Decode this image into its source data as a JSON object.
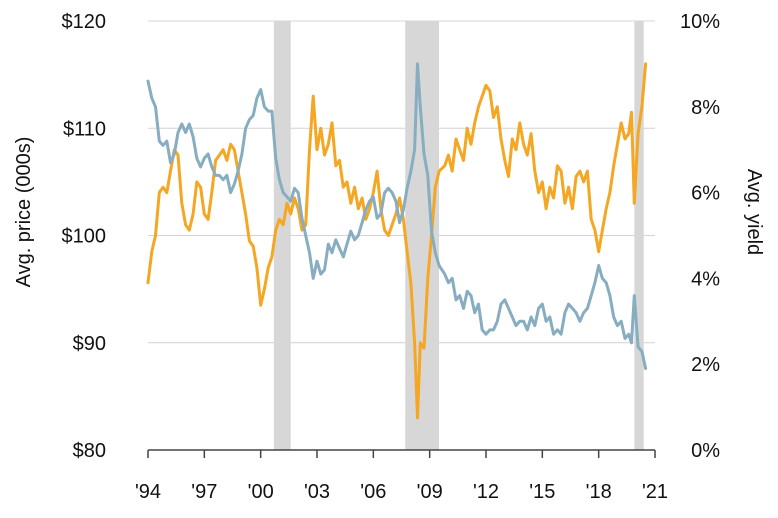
{
  "chart_data": {
    "type": "line",
    "title": "",
    "ylabel_left": "Avg. price (000s)",
    "ylabel_right": "Avg. yield",
    "xlim": [
      1994,
      2021
    ],
    "ylim_left": [
      80,
      120
    ],
    "ylim_right": [
      0,
      10
    ],
    "grid": "horizontal",
    "x_ticks": [
      {
        "value": 1994,
        "label": "'94"
      },
      {
        "value": 1997,
        "label": "'97"
      },
      {
        "value": 2000,
        "label": "'00"
      },
      {
        "value": 2003,
        "label": "'03"
      },
      {
        "value": 2006,
        "label": "'06"
      },
      {
        "value": 2009,
        "label": "'09"
      },
      {
        "value": 2012,
        "label": "'12"
      },
      {
        "value": 2015,
        "label": "'15"
      },
      {
        "value": 2018,
        "label": "'18"
      },
      {
        "value": 2021,
        "label": "'21"
      }
    ],
    "y_left_ticks": [
      {
        "value": 120,
        "label": "$120"
      },
      {
        "value": 110,
        "label": "$110"
      },
      {
        "value": 100,
        "label": "$100"
      },
      {
        "value": 90,
        "label": "$90"
      },
      {
        "value": 80,
        "label": "$80"
      }
    ],
    "y_right_ticks": [
      {
        "value": 10,
        "label": "10%"
      },
      {
        "value": 8,
        "label": "8%"
      },
      {
        "value": 6,
        "label": "6%"
      },
      {
        "value": 4,
        "label": "4%"
      },
      {
        "value": 2,
        "label": "2%"
      },
      {
        "value": 0,
        "label": "0%"
      }
    ],
    "recessions": [
      {
        "start": 2000.7,
        "end": 2001.6
      },
      {
        "start": 2007.7,
        "end": 2009.5
      },
      {
        "start": 2019.9,
        "end": 2020.4
      }
    ],
    "series": [
      {
        "name": "Avg. price",
        "axis": "left",
        "color": "#f5a623",
        "points": [
          [
            1994.0,
            95.6
          ],
          [
            1994.2,
            98.5
          ],
          [
            1994.4,
            100.0
          ],
          [
            1994.6,
            104.0
          ],
          [
            1994.8,
            104.5
          ],
          [
            1995.0,
            104.0
          ],
          [
            1995.2,
            106.0
          ],
          [
            1995.4,
            108.0
          ],
          [
            1995.6,
            107.5
          ],
          [
            1995.8,
            103.0
          ],
          [
            1996.0,
            101.0
          ],
          [
            1996.2,
            100.5
          ],
          [
            1996.4,
            102.0
          ],
          [
            1996.6,
            105.0
          ],
          [
            1996.8,
            104.5
          ],
          [
            1997.0,
            102.0
          ],
          [
            1997.2,
            101.5
          ],
          [
            1997.4,
            104.0
          ],
          [
            1997.6,
            107.0
          ],
          [
            1997.8,
            107.5
          ],
          [
            1998.0,
            108.0
          ],
          [
            1998.2,
            107.0
          ],
          [
            1998.4,
            108.5
          ],
          [
            1998.6,
            108.0
          ],
          [
            1998.8,
            106.0
          ],
          [
            1999.0,
            104.0
          ],
          [
            1999.2,
            102.0
          ],
          [
            1999.4,
            99.5
          ],
          [
            1999.6,
            99.0
          ],
          [
            1999.8,
            97.0
          ],
          [
            2000.0,
            93.5
          ],
          [
            2000.2,
            95.0
          ],
          [
            2000.4,
            97.0
          ],
          [
            2000.6,
            98.0
          ],
          [
            2000.8,
            100.5
          ],
          [
            2001.0,
            101.5
          ],
          [
            2001.2,
            101.0
          ],
          [
            2001.4,
            103.0
          ],
          [
            2001.6,
            102.0
          ],
          [
            2001.8,
            103.5
          ],
          [
            2002.0,
            102.5
          ],
          [
            2002.2,
            100.5
          ],
          [
            2002.4,
            101.0
          ],
          [
            2002.6,
            108.0
          ],
          [
            2002.8,
            113.0
          ],
          [
            2003.0,
            108.0
          ],
          [
            2003.2,
            110.0
          ],
          [
            2003.4,
            107.5
          ],
          [
            2003.6,
            108.5
          ],
          [
            2003.8,
            110.5
          ],
          [
            2004.0,
            106.5
          ],
          [
            2004.2,
            107.0
          ],
          [
            2004.4,
            104.5
          ],
          [
            2004.6,
            105.0
          ],
          [
            2004.8,
            103.0
          ],
          [
            2005.0,
            104.5
          ],
          [
            2005.2,
            102.5
          ],
          [
            2005.4,
            103.5
          ],
          [
            2005.6,
            101.5
          ],
          [
            2005.8,
            102.5
          ],
          [
            2006.0,
            104.0
          ],
          [
            2006.2,
            106.0
          ],
          [
            2006.4,
            102.5
          ],
          [
            2006.6,
            100.5
          ],
          [
            2006.8,
            100.0
          ],
          [
            2007.0,
            101.0
          ],
          [
            2007.2,
            102.0
          ],
          [
            2007.4,
            103.5
          ],
          [
            2007.6,
            101.5
          ],
          [
            2007.8,
            98.5
          ],
          [
            2008.0,
            95.5
          ],
          [
            2008.2,
            90.0
          ],
          [
            2008.35,
            83.0
          ],
          [
            2008.5,
            90.0
          ],
          [
            2008.7,
            89.5
          ],
          [
            2008.9,
            96.0
          ],
          [
            2009.1,
            100.0
          ],
          [
            2009.3,
            104.5
          ],
          [
            2009.5,
            106.0
          ],
          [
            2009.8,
            106.5
          ],
          [
            2010.0,
            107.5
          ],
          [
            2010.2,
            106.0
          ],
          [
            2010.4,
            109.0
          ],
          [
            2010.6,
            108.0
          ],
          [
            2010.8,
            107.0
          ],
          [
            2011.0,
            110.0
          ],
          [
            2011.2,
            108.5
          ],
          [
            2011.4,
            110.5
          ],
          [
            2011.6,
            112.0
          ],
          [
            2011.8,
            113.0
          ],
          [
            2012.0,
            114.0
          ],
          [
            2012.2,
            113.5
          ],
          [
            2012.4,
            111.0
          ],
          [
            2012.6,
            112.0
          ],
          [
            2012.8,
            109.0
          ],
          [
            2013.0,
            107.0
          ],
          [
            2013.2,
            105.5
          ],
          [
            2013.4,
            109.0
          ],
          [
            2013.6,
            108.0
          ],
          [
            2013.8,
            110.5
          ],
          [
            2014.0,
            108.5
          ],
          [
            2014.2,
            107.5
          ],
          [
            2014.4,
            109.5
          ],
          [
            2014.6,
            106.0
          ],
          [
            2014.8,
            104.0
          ],
          [
            2015.0,
            105.0
          ],
          [
            2015.2,
            102.5
          ],
          [
            2015.4,
            104.5
          ],
          [
            2015.6,
            103.5
          ],
          [
            2015.8,
            106.5
          ],
          [
            2016.0,
            106.0
          ],
          [
            2016.2,
            103.0
          ],
          [
            2016.4,
            104.5
          ],
          [
            2016.6,
            102.5
          ],
          [
            2016.8,
            105.5
          ],
          [
            2017.0,
            106.0
          ],
          [
            2017.2,
            105.0
          ],
          [
            2017.4,
            106.0
          ],
          [
            2017.6,
            101.5
          ],
          [
            2017.8,
            100.5
          ],
          [
            2018.0,
            98.5
          ],
          [
            2018.2,
            100.5
          ],
          [
            2018.4,
            102.5
          ],
          [
            2018.6,
            104.0
          ],
          [
            2018.8,
            106.5
          ],
          [
            2019.0,
            108.5
          ],
          [
            2019.2,
            110.5
          ],
          [
            2019.4,
            109.0
          ],
          [
            2019.6,
            109.5
          ],
          [
            2019.75,
            111.5
          ],
          [
            2019.9,
            103.0
          ],
          [
            2020.1,
            109.5
          ],
          [
            2020.3,
            112.0
          ],
          [
            2020.5,
            116.0
          ]
        ]
      },
      {
        "name": "Avg. yield",
        "axis": "right",
        "color": "#87adc1",
        "points": [
          [
            1994.0,
            8.6
          ],
          [
            1994.2,
            8.2
          ],
          [
            1994.4,
            8.0
          ],
          [
            1994.6,
            7.2
          ],
          [
            1994.8,
            7.1
          ],
          [
            1995.0,
            7.2
          ],
          [
            1995.2,
            6.7
          ],
          [
            1995.4,
            6.9
          ],
          [
            1995.6,
            7.4
          ],
          [
            1995.8,
            7.6
          ],
          [
            1996.0,
            7.4
          ],
          [
            1996.2,
            7.6
          ],
          [
            1996.4,
            7.3
          ],
          [
            1996.6,
            6.8
          ],
          [
            1996.8,
            6.6
          ],
          [
            1997.0,
            6.8
          ],
          [
            1997.2,
            6.9
          ],
          [
            1997.4,
            6.6
          ],
          [
            1997.6,
            6.4
          ],
          [
            1997.8,
            6.4
          ],
          [
            1998.0,
            6.3
          ],
          [
            1998.2,
            6.4
          ],
          [
            1998.4,
            6.0
          ],
          [
            1998.6,
            6.2
          ],
          [
            1998.8,
            6.5
          ],
          [
            1999.0,
            6.9
          ],
          [
            1999.2,
            7.5
          ],
          [
            1999.4,
            7.7
          ],
          [
            1999.6,
            7.8
          ],
          [
            1999.8,
            8.2
          ],
          [
            2000.0,
            8.4
          ],
          [
            2000.2,
            8.0
          ],
          [
            2000.4,
            7.9
          ],
          [
            2000.6,
            7.9
          ],
          [
            2000.8,
            6.8
          ],
          [
            2001.0,
            6.3
          ],
          [
            2001.2,
            6.0
          ],
          [
            2001.4,
            5.9
          ],
          [
            2001.6,
            5.8
          ],
          [
            2001.8,
            6.1
          ],
          [
            2002.0,
            6.0
          ],
          [
            2002.2,
            5.4
          ],
          [
            2002.4,
            5.0
          ],
          [
            2002.6,
            4.6
          ],
          [
            2002.8,
            4.0
          ],
          [
            2003.0,
            4.4
          ],
          [
            2003.2,
            4.1
          ],
          [
            2003.4,
            4.2
          ],
          [
            2003.6,
            4.8
          ],
          [
            2003.8,
            4.6
          ],
          [
            2004.0,
            4.9
          ],
          [
            2004.2,
            4.7
          ],
          [
            2004.4,
            4.5
          ],
          [
            2004.6,
            4.8
          ],
          [
            2004.8,
            5.1
          ],
          [
            2005.0,
            4.9
          ],
          [
            2005.2,
            5.0
          ],
          [
            2005.4,
            5.3
          ],
          [
            2005.6,
            5.6
          ],
          [
            2005.8,
            5.8
          ],
          [
            2006.0,
            5.9
          ],
          [
            2006.2,
            5.4
          ],
          [
            2006.4,
            5.5
          ],
          [
            2006.6,
            6.0
          ],
          [
            2006.8,
            6.1
          ],
          [
            2007.0,
            6.0
          ],
          [
            2007.2,
            5.8
          ],
          [
            2007.4,
            5.3
          ],
          [
            2007.6,
            5.6
          ],
          [
            2007.8,
            6.1
          ],
          [
            2008.0,
            6.5
          ],
          [
            2008.2,
            7.0
          ],
          [
            2008.35,
            9.0
          ],
          [
            2008.5,
            8.0
          ],
          [
            2008.7,
            6.9
          ],
          [
            2008.9,
            6.4
          ],
          [
            2009.1,
            5.1
          ],
          [
            2009.3,
            4.6
          ],
          [
            2009.5,
            4.3
          ],
          [
            2009.8,
            4.1
          ],
          [
            2010.0,
            3.9
          ],
          [
            2010.2,
            4.0
          ],
          [
            2010.4,
            3.5
          ],
          [
            2010.6,
            3.6
          ],
          [
            2010.8,
            3.3
          ],
          [
            2011.0,
            3.7
          ],
          [
            2011.2,
            3.6
          ],
          [
            2011.4,
            3.2
          ],
          [
            2011.6,
            3.4
          ],
          [
            2011.8,
            2.8
          ],
          [
            2012.0,
            2.7
          ],
          [
            2012.2,
            2.8
          ],
          [
            2012.4,
            2.8
          ],
          [
            2012.6,
            3.0
          ],
          [
            2012.8,
            3.4
          ],
          [
            2013.0,
            3.5
          ],
          [
            2013.2,
            3.3
          ],
          [
            2013.4,
            3.1
          ],
          [
            2013.6,
            2.9
          ],
          [
            2013.8,
            3.0
          ],
          [
            2014.0,
            3.0
          ],
          [
            2014.2,
            2.8
          ],
          [
            2014.4,
            3.1
          ],
          [
            2014.6,
            2.9
          ],
          [
            2014.8,
            3.3
          ],
          [
            2015.0,
            3.4
          ],
          [
            2015.2,
            3.0
          ],
          [
            2015.4,
            3.1
          ],
          [
            2015.6,
            2.7
          ],
          [
            2015.8,
            2.8
          ],
          [
            2016.0,
            2.7
          ],
          [
            2016.2,
            3.2
          ],
          [
            2016.4,
            3.4
          ],
          [
            2016.6,
            3.3
          ],
          [
            2016.8,
            3.2
          ],
          [
            2017.0,
            3.0
          ],
          [
            2017.2,
            3.2
          ],
          [
            2017.4,
            3.3
          ],
          [
            2017.6,
            3.6
          ],
          [
            2017.8,
            3.9
          ],
          [
            2018.0,
            4.3
          ],
          [
            2018.2,
            4.0
          ],
          [
            2018.4,
            3.9
          ],
          [
            2018.6,
            3.6
          ],
          [
            2018.8,
            3.1
          ],
          [
            2019.0,
            2.9
          ],
          [
            2019.2,
            3.0
          ],
          [
            2019.4,
            2.6
          ],
          [
            2019.6,
            2.7
          ],
          [
            2019.75,
            2.5
          ],
          [
            2019.9,
            3.6
          ],
          [
            2020.1,
            2.4
          ],
          [
            2020.3,
            2.3
          ],
          [
            2020.5,
            1.9
          ]
        ]
      }
    ]
  }
}
